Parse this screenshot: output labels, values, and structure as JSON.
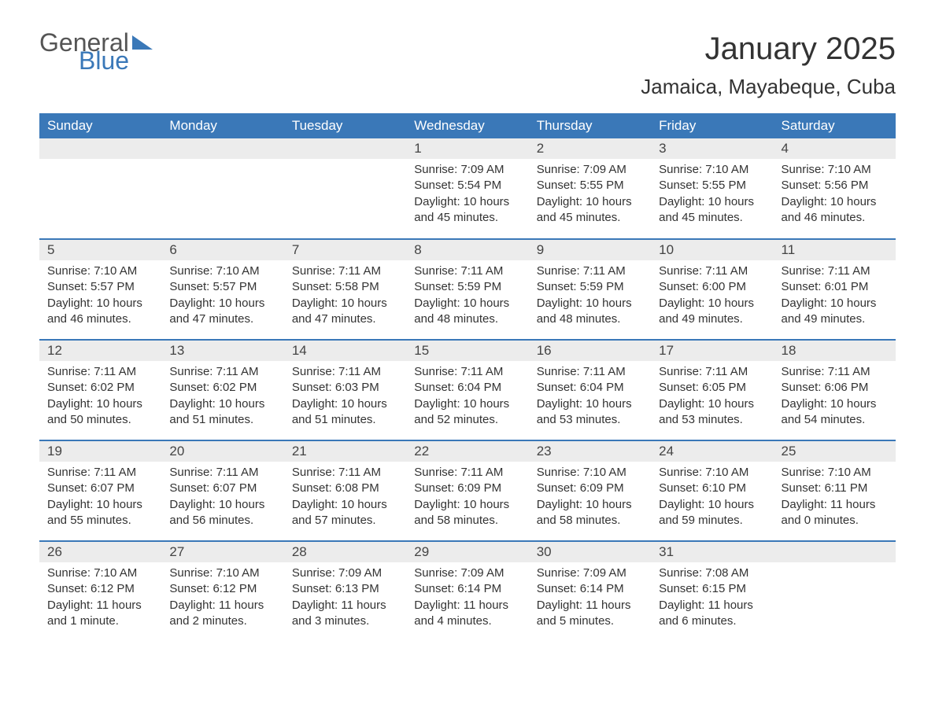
{
  "brand": {
    "part1": "General",
    "part2": "Blue"
  },
  "title": "January 2025",
  "location": "Jamaica, Mayabeque, Cuba",
  "colors": {
    "header_bg": "#3a78b8",
    "header_text": "#ffffff",
    "daynum_bg": "#ececec",
    "border": "#3a78b8",
    "body_text": "#333333",
    "page_bg": "#ffffff"
  },
  "columns": [
    "Sunday",
    "Monday",
    "Tuesday",
    "Wednesday",
    "Thursday",
    "Friday",
    "Saturday"
  ],
  "weeks": [
    [
      {
        "empty": true
      },
      {
        "empty": true
      },
      {
        "empty": true
      },
      {
        "day": "1",
        "sunrise": "7:09 AM",
        "sunset": "5:54 PM",
        "daylight": "10 hours and 45 minutes."
      },
      {
        "day": "2",
        "sunrise": "7:09 AM",
        "sunset": "5:55 PM",
        "daylight": "10 hours and 45 minutes."
      },
      {
        "day": "3",
        "sunrise": "7:10 AM",
        "sunset": "5:55 PM",
        "daylight": "10 hours and 45 minutes."
      },
      {
        "day": "4",
        "sunrise": "7:10 AM",
        "sunset": "5:56 PM",
        "daylight": "10 hours and 46 minutes."
      }
    ],
    [
      {
        "day": "5",
        "sunrise": "7:10 AM",
        "sunset": "5:57 PM",
        "daylight": "10 hours and 46 minutes."
      },
      {
        "day": "6",
        "sunrise": "7:10 AM",
        "sunset": "5:57 PM",
        "daylight": "10 hours and 47 minutes."
      },
      {
        "day": "7",
        "sunrise": "7:11 AM",
        "sunset": "5:58 PM",
        "daylight": "10 hours and 47 minutes."
      },
      {
        "day": "8",
        "sunrise": "7:11 AM",
        "sunset": "5:59 PM",
        "daylight": "10 hours and 48 minutes."
      },
      {
        "day": "9",
        "sunrise": "7:11 AM",
        "sunset": "5:59 PM",
        "daylight": "10 hours and 48 minutes."
      },
      {
        "day": "10",
        "sunrise": "7:11 AM",
        "sunset": "6:00 PM",
        "daylight": "10 hours and 49 minutes."
      },
      {
        "day": "11",
        "sunrise": "7:11 AM",
        "sunset": "6:01 PM",
        "daylight": "10 hours and 49 minutes."
      }
    ],
    [
      {
        "day": "12",
        "sunrise": "7:11 AM",
        "sunset": "6:02 PM",
        "daylight": "10 hours and 50 minutes."
      },
      {
        "day": "13",
        "sunrise": "7:11 AM",
        "sunset": "6:02 PM",
        "daylight": "10 hours and 51 minutes."
      },
      {
        "day": "14",
        "sunrise": "7:11 AM",
        "sunset": "6:03 PM",
        "daylight": "10 hours and 51 minutes."
      },
      {
        "day": "15",
        "sunrise": "7:11 AM",
        "sunset": "6:04 PM",
        "daylight": "10 hours and 52 minutes."
      },
      {
        "day": "16",
        "sunrise": "7:11 AM",
        "sunset": "6:04 PM",
        "daylight": "10 hours and 53 minutes."
      },
      {
        "day": "17",
        "sunrise": "7:11 AM",
        "sunset": "6:05 PM",
        "daylight": "10 hours and 53 minutes."
      },
      {
        "day": "18",
        "sunrise": "7:11 AM",
        "sunset": "6:06 PM",
        "daylight": "10 hours and 54 minutes."
      }
    ],
    [
      {
        "day": "19",
        "sunrise": "7:11 AM",
        "sunset": "6:07 PM",
        "daylight": "10 hours and 55 minutes."
      },
      {
        "day": "20",
        "sunrise": "7:11 AM",
        "sunset": "6:07 PM",
        "daylight": "10 hours and 56 minutes."
      },
      {
        "day": "21",
        "sunrise": "7:11 AM",
        "sunset": "6:08 PM",
        "daylight": "10 hours and 57 minutes."
      },
      {
        "day": "22",
        "sunrise": "7:11 AM",
        "sunset": "6:09 PM",
        "daylight": "10 hours and 58 minutes."
      },
      {
        "day": "23",
        "sunrise": "7:10 AM",
        "sunset": "6:09 PM",
        "daylight": "10 hours and 58 minutes."
      },
      {
        "day": "24",
        "sunrise": "7:10 AM",
        "sunset": "6:10 PM",
        "daylight": "10 hours and 59 minutes."
      },
      {
        "day": "25",
        "sunrise": "7:10 AM",
        "sunset": "6:11 PM",
        "daylight": "11 hours and 0 minutes."
      }
    ],
    [
      {
        "day": "26",
        "sunrise": "7:10 AM",
        "sunset": "6:12 PM",
        "daylight": "11 hours and 1 minute."
      },
      {
        "day": "27",
        "sunrise": "7:10 AM",
        "sunset": "6:12 PM",
        "daylight": "11 hours and 2 minutes."
      },
      {
        "day": "28",
        "sunrise": "7:09 AM",
        "sunset": "6:13 PM",
        "daylight": "11 hours and 3 minutes."
      },
      {
        "day": "29",
        "sunrise": "7:09 AM",
        "sunset": "6:14 PM",
        "daylight": "11 hours and 4 minutes."
      },
      {
        "day": "30",
        "sunrise": "7:09 AM",
        "sunset": "6:14 PM",
        "daylight": "11 hours and 5 minutes."
      },
      {
        "day": "31",
        "sunrise": "7:08 AM",
        "sunset": "6:15 PM",
        "daylight": "11 hours and 6 minutes."
      },
      {
        "empty": true
      }
    ]
  ],
  "labels": {
    "sunrise": "Sunrise: ",
    "sunset": "Sunset: ",
    "daylight": "Daylight: "
  }
}
